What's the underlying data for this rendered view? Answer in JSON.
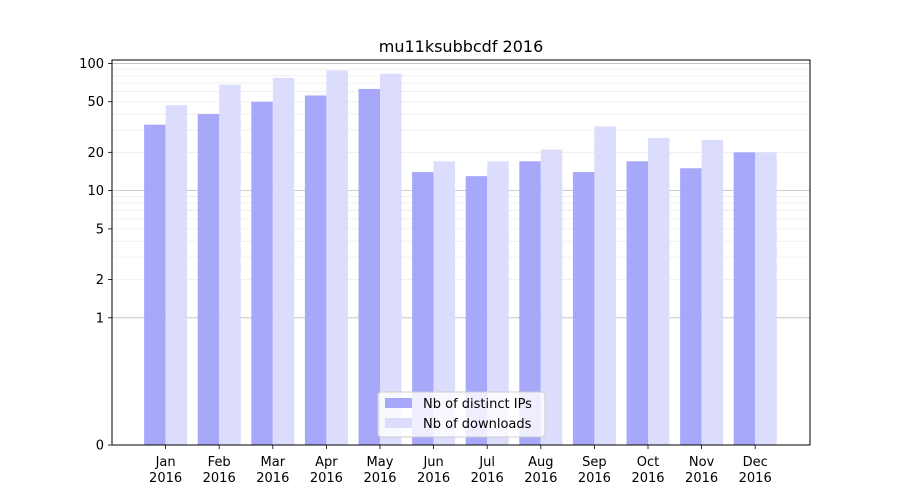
{
  "chart_data": {
    "type": "bar",
    "title": "mu11ksubbcdf 2016",
    "xlabel": "",
    "ylabel": "",
    "y_scale": "symlog",
    "ylim": [
      0,
      100
    ],
    "y_ticks": [
      0,
      1,
      2,
      5,
      10,
      20,
      50,
      100
    ],
    "y_tick_labels": [
      "0",
      "1",
      "2",
      "5",
      "10",
      "20",
      "50",
      "100"
    ],
    "grid": true,
    "legend_position": "bottom-center",
    "categories": [
      [
        "Jan",
        "2016"
      ],
      [
        "Feb",
        "2016"
      ],
      [
        "Mar",
        "2016"
      ],
      [
        "Apr",
        "2016"
      ],
      [
        "May",
        "2016"
      ],
      [
        "Jun",
        "2016"
      ],
      [
        "Jul",
        "2016"
      ],
      [
        "Aug",
        "2016"
      ],
      [
        "Sep",
        "2016"
      ],
      [
        "Oct",
        "2016"
      ],
      [
        "Nov",
        "2016"
      ],
      [
        "Dec",
        "2016"
      ]
    ],
    "series": [
      {
        "name": "Nb of distinct IPs",
        "color": "#a8a8fb",
        "values": [
          33,
          40,
          50,
          56,
          63,
          14,
          13,
          17,
          14,
          17,
          15,
          20
        ]
      },
      {
        "name": "Nb of downloads",
        "color": "#dcdcfd",
        "values": [
          47,
          68,
          77,
          88,
          83,
          17,
          17,
          21,
          32,
          26,
          25,
          20
        ]
      }
    ]
  }
}
